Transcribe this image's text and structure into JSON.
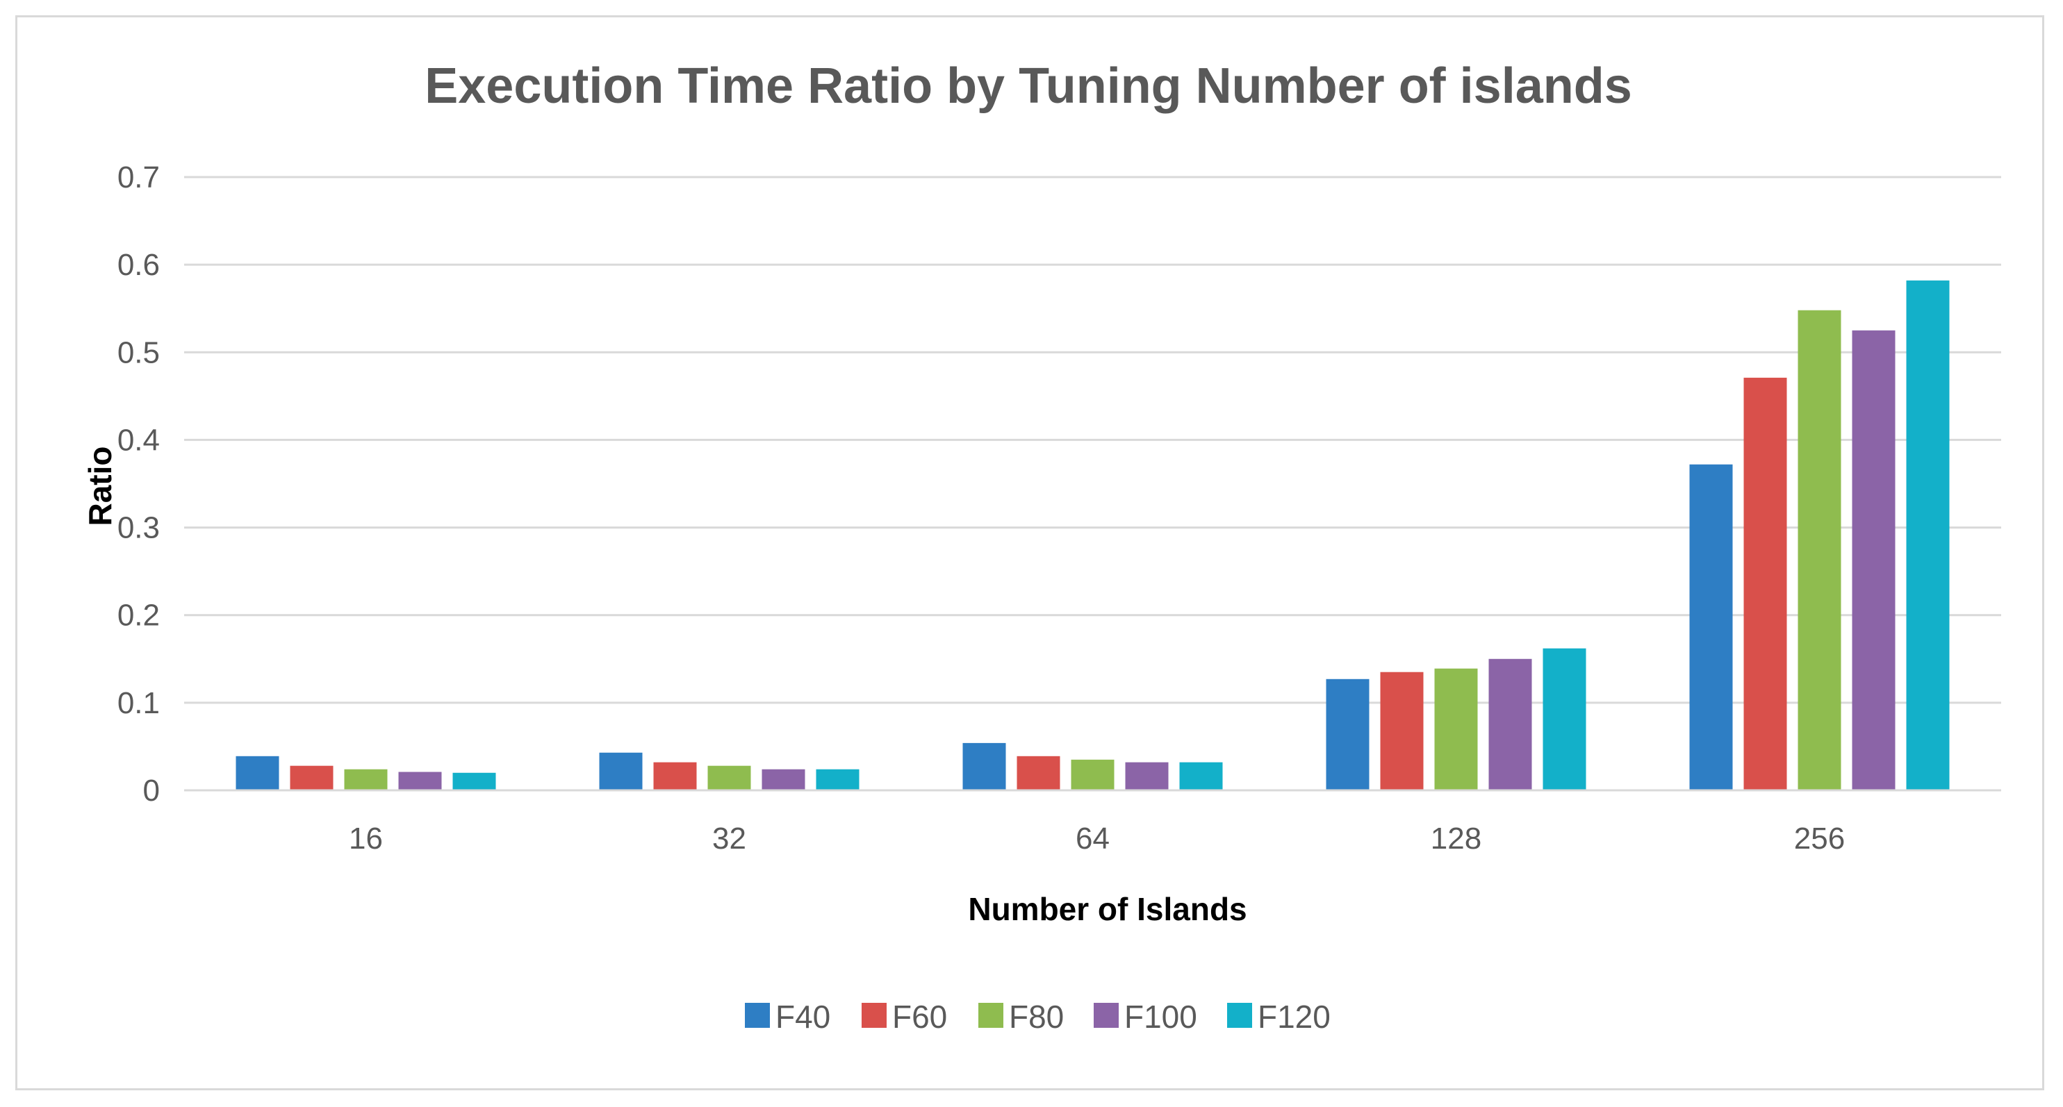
{
  "chart_data": {
    "type": "bar",
    "title": "Execution Time Ratio by Tuning Number of islands",
    "xlabel": "Number of Islands",
    "ylabel": "Ratio",
    "categories": [
      "16",
      "32",
      "64",
      "128",
      "256"
    ],
    "ylim": [
      0,
      0.7
    ],
    "yticks": [
      0,
      0.1,
      0.2,
      0.3,
      0.4,
      0.5,
      0.6,
      0.7
    ],
    "ytick_labels": [
      "0",
      "0.1",
      "0.2",
      "0.3",
      "0.4",
      "0.5",
      "0.6",
      "0.7"
    ],
    "grid": true,
    "legend_position": "bottom",
    "series": [
      {
        "name": "F40",
        "color": "#2e7ec4",
        "values": [
          0.039,
          0.043,
          0.054,
          0.127,
          0.372
        ]
      },
      {
        "name": "F60",
        "color": "#d9504b",
        "values": [
          0.028,
          0.032,
          0.039,
          0.135,
          0.471
        ]
      },
      {
        "name": "F80",
        "color": "#8fbc4f",
        "values": [
          0.024,
          0.028,
          0.035,
          0.139,
          0.548
        ]
      },
      {
        "name": "F100",
        "color": "#8b64a7",
        "values": [
          0.021,
          0.024,
          0.032,
          0.15,
          0.525
        ]
      },
      {
        "name": "F120",
        "color": "#13b0c9",
        "values": [
          0.02,
          0.024,
          0.032,
          0.162,
          0.582
        ]
      }
    ],
    "colors": {
      "gridline": "#d9d9d9",
      "axis_line": "#d9d9d9",
      "text": "#595959"
    }
  }
}
